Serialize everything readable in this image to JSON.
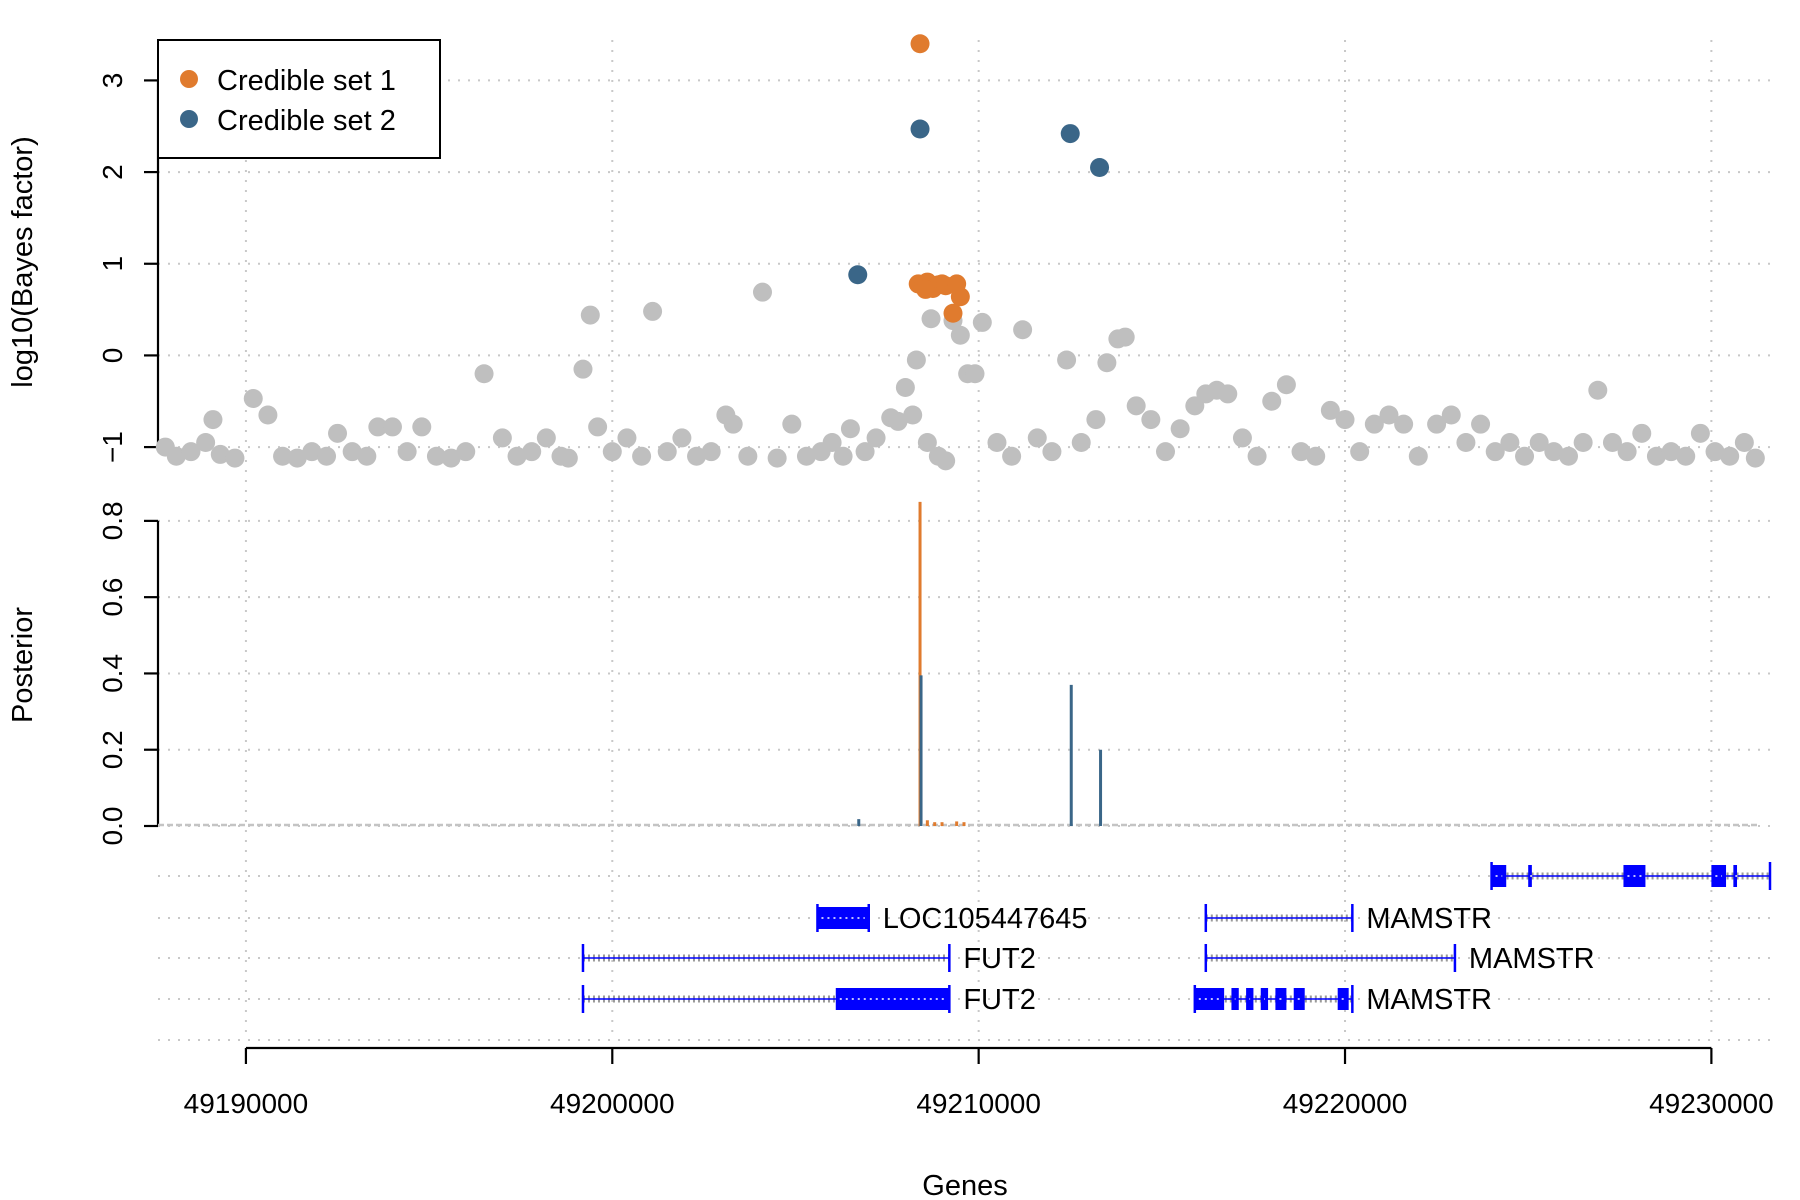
{
  "chart_data": [
    {
      "panel": "bayes-factor",
      "type": "scatter",
      "ylabel": "log10(Bayes factor)",
      "ylim": [
        -1.25,
        3.55
      ],
      "yticks": [
        -1,
        0,
        1,
        2,
        3
      ],
      "grid": true,
      "legend": {
        "placement": "top-left",
        "entries": [
          {
            "label": "Credible set 1",
            "color": "#E07B2E"
          },
          {
            "label": "Credible set 2",
            "color": "#3A6688"
          }
        ]
      },
      "series": [
        {
          "name": "Credible set 1",
          "color": "#E07B2E",
          "points": [
            [
              49208400,
              3.4
            ],
            [
              49208350,
              0.78
            ],
            [
              49208500,
              0.76
            ],
            [
              49208600,
              0.8
            ],
            [
              49208750,
              0.73
            ],
            [
              49208900,
              0.77
            ],
            [
              49209000,
              0.78
            ],
            [
              49209100,
              0.76
            ],
            [
              49209400,
              0.78
            ],
            [
              49209500,
              0.64
            ],
            [
              49209300,
              0.46
            ],
            [
              49208550,
              0.72
            ]
          ]
        },
        {
          "name": "Credible set 2",
          "color": "#3A6688",
          "points": [
            [
              49208400,
              2.47
            ],
            [
              49212500,
              2.42
            ],
            [
              49213300,
              2.05
            ],
            [
              49206700,
              0.88
            ]
          ]
        },
        {
          "name": "",
          "color": "#BFBFBF",
          "points": [
            [
              49187800,
              -1.0
            ],
            [
              49188100,
              -1.1
            ],
            [
              49188500,
              -1.05
            ],
            [
              49188900,
              -0.95
            ],
            [
              49189100,
              -0.7
            ],
            [
              49189300,
              -1.08
            ],
            [
              49189700,
              -1.12
            ],
            [
              49190200,
              -0.47
            ],
            [
              49190600,
              -0.65
            ],
            [
              49191000,
              -1.1
            ],
            [
              49191400,
              -1.12
            ],
            [
              49191800,
              -1.05
            ],
            [
              49192200,
              -1.1
            ],
            [
              49192500,
              -0.85
            ],
            [
              49192900,
              -1.05
            ],
            [
              49193300,
              -1.1
            ],
            [
              49193600,
              -0.78
            ],
            [
              49194000,
              -0.78
            ],
            [
              49194400,
              -1.05
            ],
            [
              49194800,
              -0.78
            ],
            [
              49195200,
              -1.1
            ],
            [
              49195600,
              -1.12
            ],
            [
              49196000,
              -1.05
            ],
            [
              49196500,
              -0.2
            ],
            [
              49197000,
              -0.9
            ],
            [
              49197400,
              -1.1
            ],
            [
              49197800,
              -1.05
            ],
            [
              49198200,
              -0.9
            ],
            [
              49198600,
              -1.1
            ],
            [
              49198800,
              -1.12
            ],
            [
              49199200,
              -0.15
            ],
            [
              49199400,
              0.44
            ],
            [
              49199600,
              -0.78
            ],
            [
              49200000,
              -1.05
            ],
            [
              49200400,
              -0.9
            ],
            [
              49200800,
              -1.1
            ],
            [
              49201100,
              0.48
            ],
            [
              49201500,
              -1.05
            ],
            [
              49201900,
              -0.9
            ],
            [
              49202300,
              -1.1
            ],
            [
              49202700,
              -1.05
            ],
            [
              49203100,
              -0.65
            ],
            [
              49203300,
              -0.75
            ],
            [
              49203700,
              -1.1
            ],
            [
              49204100,
              0.69
            ],
            [
              49204500,
              -1.12
            ],
            [
              49204900,
              -0.75
            ],
            [
              49205300,
              -1.1
            ],
            [
              49205700,
              -1.05
            ],
            [
              49206000,
              -0.95
            ],
            [
              49206300,
              -1.1
            ],
            [
              49206500,
              -0.8
            ],
            [
              49206900,
              -1.05
            ],
            [
              49207200,
              -0.9
            ],
            [
              49207600,
              -0.68
            ],
            [
              49207800,
              -0.72
            ],
            [
              49208000,
              -0.35
            ],
            [
              49208300,
              -0.05
            ],
            [
              49208700,
              0.4
            ],
            [
              49208200,
              -0.65
            ],
            [
              49208600,
              -0.95
            ],
            [
              49208900,
              -1.1
            ],
            [
              49209100,
              -1.15
            ],
            [
              49209300,
              0.38
            ],
            [
              49209500,
              0.22
            ],
            [
              49209700,
              -0.2
            ],
            [
              49209900,
              -0.2
            ],
            [
              49210100,
              0.36
            ],
            [
              49210500,
              -0.95
            ],
            [
              49210900,
              -1.1
            ],
            [
              49211200,
              0.28
            ],
            [
              49211600,
              -0.9
            ],
            [
              49212000,
              -1.05
            ],
            [
              49212400,
              -0.05
            ],
            [
              49212800,
              -0.95
            ],
            [
              49213200,
              -0.7
            ],
            [
              49213500,
              -0.08
            ],
            [
              49213800,
              0.18
            ],
            [
              49214000,
              0.2
            ],
            [
              49214300,
              -0.55
            ],
            [
              49214700,
              -0.7
            ],
            [
              49215100,
              -1.05
            ],
            [
              49215500,
              -0.8
            ],
            [
              49215900,
              -0.55
            ],
            [
              49216200,
              -0.42
            ],
            [
              49216500,
              -0.38
            ],
            [
              49216800,
              -0.42
            ],
            [
              49217200,
              -0.9
            ],
            [
              49217600,
              -1.1
            ],
            [
              49218000,
              -0.5
            ],
            [
              49218400,
              -0.32
            ],
            [
              49218800,
              -1.05
            ],
            [
              49219200,
              -1.1
            ],
            [
              49219600,
              -0.6
            ],
            [
              49220000,
              -0.7
            ],
            [
              49220400,
              -1.05
            ],
            [
              49220800,
              -0.75
            ],
            [
              49221200,
              -0.65
            ],
            [
              49221600,
              -0.75
            ],
            [
              49222000,
              -1.1
            ],
            [
              49222500,
              -0.75
            ],
            [
              49222900,
              -0.65
            ],
            [
              49223300,
              -0.95
            ],
            [
              49223700,
              -0.75
            ],
            [
              49224100,
              -1.05
            ],
            [
              49224500,
              -0.95
            ],
            [
              49224900,
              -1.1
            ],
            [
              49225300,
              -0.95
            ],
            [
              49225700,
              -1.05
            ],
            [
              49226100,
              -1.1
            ],
            [
              49226500,
              -0.95
            ],
            [
              49226900,
              -0.38
            ],
            [
              49227300,
              -0.95
            ],
            [
              49227700,
              -1.05
            ],
            [
              49228100,
              -0.85
            ],
            [
              49228500,
              -1.1
            ],
            [
              49228900,
              -1.05
            ],
            [
              49229300,
              -1.1
            ],
            [
              49229700,
              -0.85
            ],
            [
              49230100,
              -1.05
            ],
            [
              49230500,
              -1.1
            ],
            [
              49230900,
              -0.95
            ],
            [
              49231200,
              -1.12
            ]
          ]
        }
      ]
    },
    {
      "panel": "posterior",
      "type": "bar",
      "ylabel": "Posterior",
      "ylim": [
        0,
        0.86
      ],
      "yticks": [
        "0.0",
        "0.2",
        "0.4",
        "0.6",
        "0.8"
      ],
      "grid": true,
      "series": [
        {
          "name": "Credible set 1",
          "color": "#E07B2E",
          "bars": [
            [
              49208400,
              0.85
            ],
            [
              49208600,
              0.015
            ],
            [
              49208800,
              0.01
            ],
            [
              49209000,
              0.01
            ],
            [
              49209400,
              0.012
            ],
            [
              49209600,
              0.01
            ]
          ]
        },
        {
          "name": "Credible set 2",
          "color": "#3A6688",
          "bars": [
            [
              49208400,
              0.395
            ],
            [
              49212500,
              0.37
            ],
            [
              49213300,
              0.2
            ],
            [
              49206700,
              0.018
            ]
          ]
        }
      ]
    },
    {
      "panel": "genes",
      "type": "gene-track",
      "xlabel": "Genes",
      "xlim": [
        49187600,
        49231600
      ],
      "xticks": [
        "49190000",
        "49200000",
        "49210000",
        "49220000",
        "49230000"
      ],
      "xtick_values": [
        49190000,
        49200000,
        49210000,
        49220000,
        49230000
      ],
      "genes": [
        {
          "name": "",
          "row": 0,
          "start": 49224000,
          "end": 49231600,
          "exons": [
            [
              49224000,
              49224400
            ],
            [
              49225000,
              49225100
            ],
            [
              49227600,
              49228200
            ],
            [
              49230000,
              49230400
            ],
            [
              49230600,
              49230700
            ]
          ]
        },
        {
          "name": "LOC105447645",
          "row": 1,
          "start": 49205600,
          "end": 49207000,
          "exons": [
            [
              49205600,
              49207000
            ]
          ]
        },
        {
          "name": "MAMSTR",
          "row": 1,
          "start": 49216200,
          "end": 49220200,
          "exons": []
        },
        {
          "name": "FUT2",
          "row": 2,
          "start": 49199200,
          "end": 49209200,
          "exons": []
        },
        {
          "name": "MAMSTR",
          "row": 2,
          "start": 49216200,
          "end": 49223000,
          "exons": []
        },
        {
          "name": "FUT2",
          "row": 3,
          "start": 49199200,
          "end": 49209200,
          "exons": [
            [
              49206100,
              49209200
            ]
          ]
        },
        {
          "name": "MAMSTR",
          "row": 3,
          "start": 49215900,
          "end": 49220200,
          "exons": [
            [
              49215900,
              49216700
            ],
            [
              49216900,
              49217100
            ],
            [
              49217300,
              49217500
            ],
            [
              49217700,
              49217900
            ],
            [
              49218100,
              49218400
            ],
            [
              49218600,
              49218900
            ],
            [
              49219800,
              49220100
            ]
          ]
        }
      ]
    }
  ]
}
